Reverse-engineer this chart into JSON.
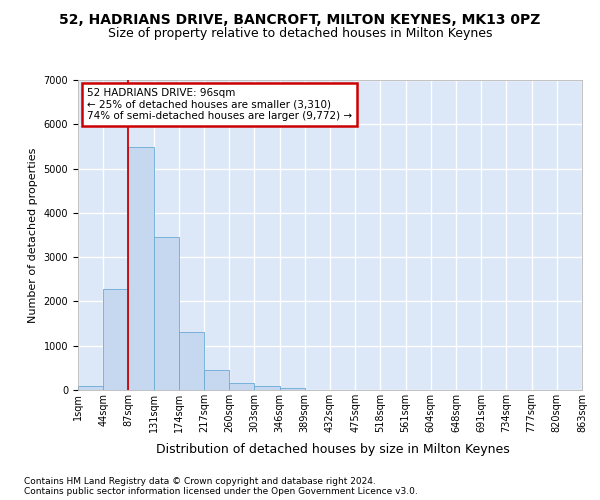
{
  "title1": "52, HADRIANS DRIVE, BANCROFT, MILTON KEYNES, MK13 0PZ",
  "title2": "Size of property relative to detached houses in Milton Keynes",
  "xlabel": "Distribution of detached houses by size in Milton Keynes",
  "ylabel": "Number of detached properties",
  "footer1": "Contains HM Land Registry data © Crown copyright and database right 2024.",
  "footer2": "Contains public sector information licensed under the Open Government Licence v3.0.",
  "bar_values": [
    80,
    2280,
    5480,
    3450,
    1320,
    460,
    150,
    80,
    50,
    0,
    0,
    0,
    0,
    0,
    0,
    0,
    0,
    0,
    0,
    0
  ],
  "bar_color": "#c5d8f0",
  "bar_edge_color": "#6aaad4",
  "xlabels": [
    "1sqm",
    "44sqm",
    "87sqm",
    "131sqm",
    "174sqm",
    "217sqm",
    "260sqm",
    "303sqm",
    "346sqm",
    "389sqm",
    "432sqm",
    "475sqm",
    "518sqm",
    "561sqm",
    "604sqm",
    "648sqm",
    "691sqm",
    "734sqm",
    "777sqm",
    "820sqm",
    "863sqm"
  ],
  "ylim": [
    0,
    7000
  ],
  "yticks": [
    0,
    1000,
    2000,
    3000,
    4000,
    5000,
    6000,
    7000
  ],
  "vline_x": 2,
  "annotation_text": "52 HADRIANS DRIVE: 96sqm\n← 25% of detached houses are smaller (3,310)\n74% of semi-detached houses are larger (9,772) →",
  "annotation_box_facecolor": "#ffffff",
  "annotation_box_edgecolor": "#cc0000",
  "bg_color": "#dce8f8",
  "grid_color": "#ffffff",
  "fig_bg_color": "#ffffff",
  "title1_fontsize": 10,
  "title2_fontsize": 9,
  "xlabel_fontsize": 9,
  "ylabel_fontsize": 8,
  "tick_fontsize": 7,
  "footer_fontsize": 6.5
}
